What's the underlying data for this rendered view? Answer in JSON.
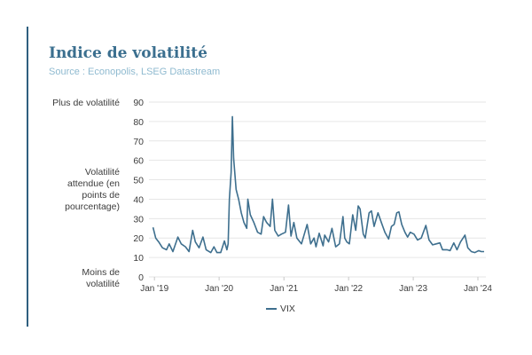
{
  "header": {
    "title": "Indice de volatilité",
    "subtitle": "Source : Econopolis, LSEG Datastream"
  },
  "side_labels": {
    "top": "Plus de volatilité",
    "middle": "Volatilité attendue (en points de pourcentage)",
    "bottom": "Moins de volatilité"
  },
  "colors": {
    "accent": "#2f5f7f",
    "title": "#3b6f8f",
    "subtitle": "#8fbad0",
    "series": "#3e6f8e",
    "grid": "#e6e6e6",
    "axis_text": "#3c3c3c"
  },
  "chart_data": {
    "type": "line",
    "title": "Indice de volatilité",
    "ylim": [
      0,
      90
    ],
    "yticks": [
      0,
      10,
      20,
      30,
      40,
      50,
      60,
      70,
      80,
      90
    ],
    "xlim": [
      "2018-12-01",
      "2024-02-15"
    ],
    "xticks": [
      {
        "label": "Jan '19",
        "date": "2019-01-01"
      },
      {
        "label": "Jan '20",
        "date": "2020-01-01"
      },
      {
        "label": "Jan '21",
        "date": "2021-01-01"
      },
      {
        "label": "Jan '22",
        "date": "2022-01-01"
      },
      {
        "label": "Jan '23",
        "date": "2023-01-01"
      },
      {
        "label": "Jan '24",
        "date": "2024-01-01"
      }
    ],
    "grid": true,
    "legend_position": "bottom-center",
    "series": [
      {
        "name": "VIX",
        "points": [
          [
            "2018-12-24",
            25.5
          ],
          [
            "2019-01-08",
            20
          ],
          [
            "2019-01-25",
            18
          ],
          [
            "2019-02-15",
            15
          ],
          [
            "2019-03-10",
            14
          ],
          [
            "2019-03-25",
            17
          ],
          [
            "2019-04-15",
            13
          ],
          [
            "2019-05-13",
            20.5
          ],
          [
            "2019-06-01",
            17
          ],
          [
            "2019-06-25",
            15.5
          ],
          [
            "2019-07-15",
            13
          ],
          [
            "2019-08-05",
            24
          ],
          [
            "2019-08-20",
            18
          ],
          [
            "2019-09-10",
            15
          ],
          [
            "2019-10-02",
            20.5
          ],
          [
            "2019-10-20",
            14
          ],
          [
            "2019-11-15",
            12.5
          ],
          [
            "2019-12-03",
            15.5
          ],
          [
            "2019-12-20",
            12.5
          ],
          [
            "2020-01-10",
            12.5
          ],
          [
            "2020-01-31",
            18.5
          ],
          [
            "2020-02-14",
            14
          ],
          [
            "2020-02-21",
            17
          ],
          [
            "2020-02-28",
            40
          ],
          [
            "2020-03-09",
            54
          ],
          [
            "2020-03-16",
            82.5
          ],
          [
            "2020-03-23",
            61
          ],
          [
            "2020-04-06",
            45
          ],
          [
            "2020-04-20",
            40
          ],
          [
            "2020-05-05",
            33
          ],
          [
            "2020-05-20",
            28
          ],
          [
            "2020-06-05",
            25
          ],
          [
            "2020-06-11",
            40
          ],
          [
            "2020-06-25",
            32
          ],
          [
            "2020-07-15",
            28
          ],
          [
            "2020-08-05",
            23
          ],
          [
            "2020-08-25",
            22
          ],
          [
            "2020-09-08",
            31
          ],
          [
            "2020-09-25",
            28
          ],
          [
            "2020-10-15",
            26
          ],
          [
            "2020-10-28",
            40
          ],
          [
            "2020-11-10",
            24
          ],
          [
            "2020-11-30",
            21
          ],
          [
            "2020-12-18",
            22
          ],
          [
            "2021-01-10",
            23
          ],
          [
            "2021-01-27",
            37
          ],
          [
            "2021-02-10",
            21
          ],
          [
            "2021-02-26",
            28
          ],
          [
            "2021-03-15",
            20
          ],
          [
            "2021-04-10",
            17
          ],
          [
            "2021-05-12",
            27
          ],
          [
            "2021-06-01",
            17
          ],
          [
            "2021-06-20",
            20
          ],
          [
            "2021-07-01",
            15.5
          ],
          [
            "2021-07-19",
            22.5
          ],
          [
            "2021-08-10",
            16
          ],
          [
            "2021-08-19",
            21.5
          ],
          [
            "2021-09-10",
            18
          ],
          [
            "2021-09-29",
            25
          ],
          [
            "2021-10-20",
            15.5
          ],
          [
            "2021-11-10",
            17
          ],
          [
            "2021-11-30",
            31
          ],
          [
            "2021-12-10",
            20
          ],
          [
            "2021-12-22",
            18
          ],
          [
            "2022-01-05",
            17
          ],
          [
            "2022-01-24",
            32
          ],
          [
            "2022-02-10",
            24
          ],
          [
            "2022-02-24",
            36.5
          ],
          [
            "2022-03-07",
            35
          ],
          [
            "2022-03-25",
            22
          ],
          [
            "2022-04-05",
            20
          ],
          [
            "2022-04-27",
            33
          ],
          [
            "2022-05-10",
            34
          ],
          [
            "2022-05-25",
            26
          ],
          [
            "2022-06-16",
            33
          ],
          [
            "2022-07-05",
            28
          ],
          [
            "2022-07-25",
            23
          ],
          [
            "2022-08-15",
            19.5
          ],
          [
            "2022-08-31",
            26
          ],
          [
            "2022-09-15",
            27
          ],
          [
            "2022-09-30",
            33
          ],
          [
            "2022-10-12",
            33.5
          ],
          [
            "2022-10-28",
            27
          ],
          [
            "2022-11-15",
            23
          ],
          [
            "2022-11-30",
            20.5
          ],
          [
            "2022-12-15",
            23
          ],
          [
            "2023-01-05",
            22
          ],
          [
            "2023-01-25",
            19
          ],
          [
            "2023-02-15",
            20
          ],
          [
            "2023-03-13",
            26.5
          ],
          [
            "2023-03-31",
            19
          ],
          [
            "2023-04-20",
            16.5
          ],
          [
            "2023-05-10",
            17
          ],
          [
            "2023-05-31",
            17.5
          ],
          [
            "2023-06-15",
            14
          ],
          [
            "2023-07-10",
            14
          ],
          [
            "2023-07-28",
            13.5
          ],
          [
            "2023-08-18",
            17.5
          ],
          [
            "2023-09-05",
            14
          ],
          [
            "2023-09-25",
            18
          ],
          [
            "2023-10-20",
            21.5
          ],
          [
            "2023-11-05",
            15
          ],
          [
            "2023-11-25",
            13
          ],
          [
            "2023-12-15",
            12.5
          ],
          [
            "2024-01-05",
            13.5
          ],
          [
            "2024-01-20",
            13
          ],
          [
            "2024-02-05",
            13
          ]
        ]
      }
    ]
  }
}
